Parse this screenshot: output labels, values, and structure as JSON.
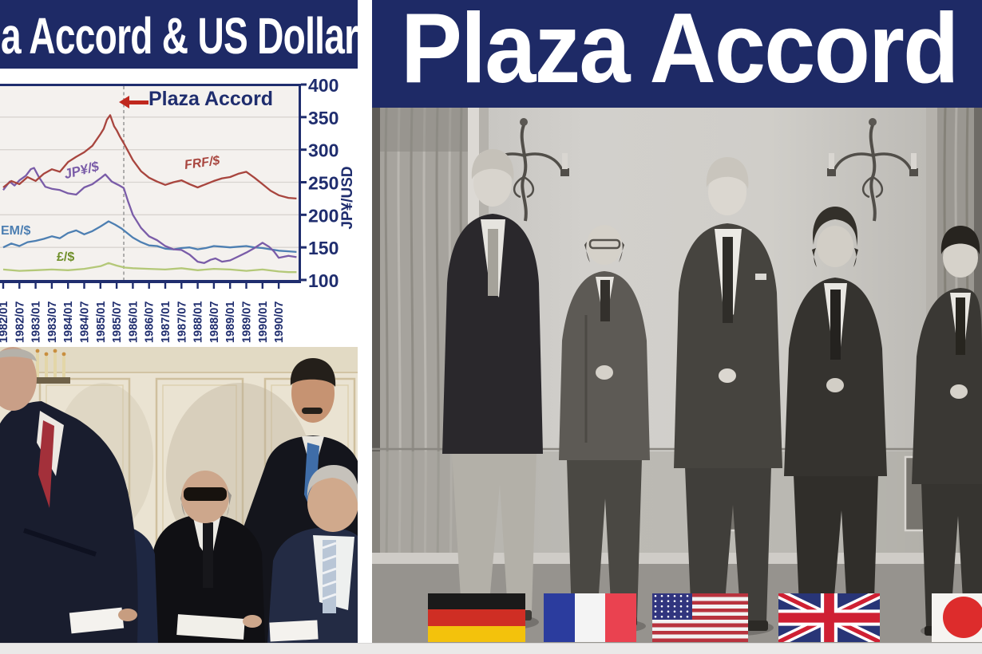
{
  "left_panel": {
    "banner_title": "a Accord & US Dollar"
  },
  "right_panel": {
    "banner_title": "Plaza Accord",
    "flags": [
      {
        "icon": "germany-flag-icon",
        "country": "Germany"
      },
      {
        "icon": "france-flag-icon",
        "country": "France"
      },
      {
        "icon": "usa-flag-icon",
        "country": "United States"
      },
      {
        "icon": "uk-flag-icon",
        "country": "United Kingdom"
      },
      {
        "icon": "japan-flag-icon",
        "country": "Japan"
      }
    ]
  },
  "chart_data": {
    "type": "line",
    "title": "a Accord & US Dollar",
    "ylabel": "JP¥/USD",
    "ylim": [
      100,
      400
    ],
    "yticks": [
      400,
      350,
      300,
      250,
      200,
      150,
      100
    ],
    "x_tick_labels": [
      "1982/01",
      "1982/07",
      "1983/01",
      "1983/07",
      "1984/01",
      "1984/07",
      "1985/01",
      "1985/07",
      "1986/01",
      "1986/07",
      "1987/01",
      "1987/07",
      "1988/01",
      "1988/07",
      "1989/01",
      "1989/07",
      "1990/01",
      "1990/07"
    ],
    "grid": true,
    "legend_position": "inline-labels",
    "annotation": {
      "label": "Plaza Accord",
      "x": 1985.72,
      "arrow_color": "#c0281e",
      "line_style": "dashed"
    },
    "series": [
      {
        "name": "FRF/$",
        "color": "#a8453e",
        "points": [
          [
            1982,
            242
          ],
          [
            1982.25,
            252
          ],
          [
            1982.5,
            247
          ],
          [
            1982.75,
            258
          ],
          [
            1983,
            252
          ],
          [
            1983.25,
            263
          ],
          [
            1983.5,
            270
          ],
          [
            1983.75,
            266
          ],
          [
            1984,
            281
          ],
          [
            1984.25,
            289
          ],
          [
            1984.5,
            296
          ],
          [
            1984.75,
            306
          ],
          [
            1985,
            324
          ],
          [
            1985.1,
            332
          ],
          [
            1985.2,
            346
          ],
          [
            1985.3,
            353
          ],
          [
            1985.42,
            336
          ],
          [
            1985.5,
            330
          ],
          [
            1985.6,
            320
          ],
          [
            1985.72,
            310
          ],
          [
            1985.85,
            298
          ],
          [
            1986,
            284
          ],
          [
            1986.25,
            267
          ],
          [
            1986.5,
            257
          ],
          [
            1986.75,
            251
          ],
          [
            1987,
            246
          ],
          [
            1987.25,
            250
          ],
          [
            1987.5,
            253
          ],
          [
            1987.75,
            247
          ],
          [
            1988,
            242
          ],
          [
            1988.25,
            247
          ],
          [
            1988.5,
            252
          ],
          [
            1988.75,
            256
          ],
          [
            1989,
            258
          ],
          [
            1989.25,
            263
          ],
          [
            1989.5,
            266
          ],
          [
            1989.75,
            257
          ],
          [
            1990,
            247
          ],
          [
            1990.25,
            237
          ],
          [
            1990.5,
            230
          ],
          [
            1990.8,
            226
          ],
          [
            1991.05,
            225
          ]
        ]
      },
      {
        "name": "JP¥/$",
        "color": "#7a5ca8",
        "points": [
          [
            1982,
            238
          ],
          [
            1982.2,
            251
          ],
          [
            1982.35,
            245
          ],
          [
            1982.5,
            253
          ],
          [
            1982.7,
            260
          ],
          [
            1982.85,
            270
          ],
          [
            1982.95,
            272
          ],
          [
            1983.1,
            258
          ],
          [
            1983.3,
            243
          ],
          [
            1983.5,
            240
          ],
          [
            1983.75,
            238
          ],
          [
            1984,
            233
          ],
          [
            1984.25,
            231
          ],
          [
            1984.5,
            242
          ],
          [
            1984.75,
            247
          ],
          [
            1985,
            256
          ],
          [
            1985.15,
            262
          ],
          [
            1985.35,
            251
          ],
          [
            1985.55,
            246
          ],
          [
            1985.72,
            241
          ],
          [
            1985.85,
            221
          ],
          [
            1986,
            200
          ],
          [
            1986.25,
            180
          ],
          [
            1986.5,
            167
          ],
          [
            1986.75,
            161
          ],
          [
            1987,
            152
          ],
          [
            1987.25,
            147
          ],
          [
            1987.5,
            146
          ],
          [
            1987.75,
            139
          ],
          [
            1988,
            128
          ],
          [
            1988.2,
            126
          ],
          [
            1988.4,
            131
          ],
          [
            1988.55,
            133
          ],
          [
            1988.75,
            128
          ],
          [
            1989,
            130
          ],
          [
            1989.25,
            136
          ],
          [
            1989.5,
            142
          ],
          [
            1989.75,
            149
          ],
          [
            1990,
            157
          ],
          [
            1990.2,
            151
          ],
          [
            1990.35,
            144
          ],
          [
            1990.5,
            134
          ],
          [
            1990.8,
            137
          ],
          [
            1991.05,
            135
          ]
        ]
      },
      {
        "name": "DEM/$",
        "visible_label": "EM/$",
        "color": "#4d7fb2",
        "points": [
          [
            1982,
            150
          ],
          [
            1982.25,
            156
          ],
          [
            1982.5,
            152
          ],
          [
            1982.75,
            158
          ],
          [
            1983,
            160
          ],
          [
            1983.25,
            163
          ],
          [
            1983.5,
            167
          ],
          [
            1983.75,
            164
          ],
          [
            1984,
            172
          ],
          [
            1984.25,
            176
          ],
          [
            1984.5,
            170
          ],
          [
            1984.75,
            175
          ],
          [
            1985,
            182
          ],
          [
            1985.25,
            190
          ],
          [
            1985.45,
            185
          ],
          [
            1985.65,
            179
          ],
          [
            1985.85,
            171
          ],
          [
            1986,
            165
          ],
          [
            1986.25,
            158
          ],
          [
            1986.5,
            153
          ],
          [
            1986.75,
            152
          ],
          [
            1987,
            148
          ],
          [
            1987.25,
            147
          ],
          [
            1987.5,
            149
          ],
          [
            1987.75,
            150
          ],
          [
            1988,
            147
          ],
          [
            1988.25,
            149
          ],
          [
            1988.5,
            152
          ],
          [
            1988.75,
            151
          ],
          [
            1989,
            150
          ],
          [
            1989.25,
            151
          ],
          [
            1989.5,
            152
          ],
          [
            1989.75,
            150
          ],
          [
            1990,
            149
          ],
          [
            1990.25,
            147
          ],
          [
            1990.5,
            145
          ],
          [
            1990.8,
            144
          ],
          [
            1991.05,
            143
          ]
        ]
      },
      {
        "name": "£/$",
        "color": "#b4c878",
        "label_color": "#6f8f2a",
        "points": [
          [
            1982,
            116
          ],
          [
            1982.5,
            114
          ],
          [
            1983,
            115
          ],
          [
            1983.5,
            116
          ],
          [
            1984,
            115
          ],
          [
            1984.5,
            117
          ],
          [
            1985,
            121
          ],
          [
            1985.25,
            126
          ],
          [
            1985.5,
            122
          ],
          [
            1985.75,
            119
          ],
          [
            1986,
            118
          ],
          [
            1986.5,
            117
          ],
          [
            1987,
            116
          ],
          [
            1987.5,
            118
          ],
          [
            1988,
            115
          ],
          [
            1988.5,
            117
          ],
          [
            1989,
            116
          ],
          [
            1989.5,
            114
          ],
          [
            1990,
            116
          ],
          [
            1990.5,
            113
          ],
          [
            1990.8,
            112
          ],
          [
            1991.05,
            112
          ]
        ]
      }
    ]
  }
}
